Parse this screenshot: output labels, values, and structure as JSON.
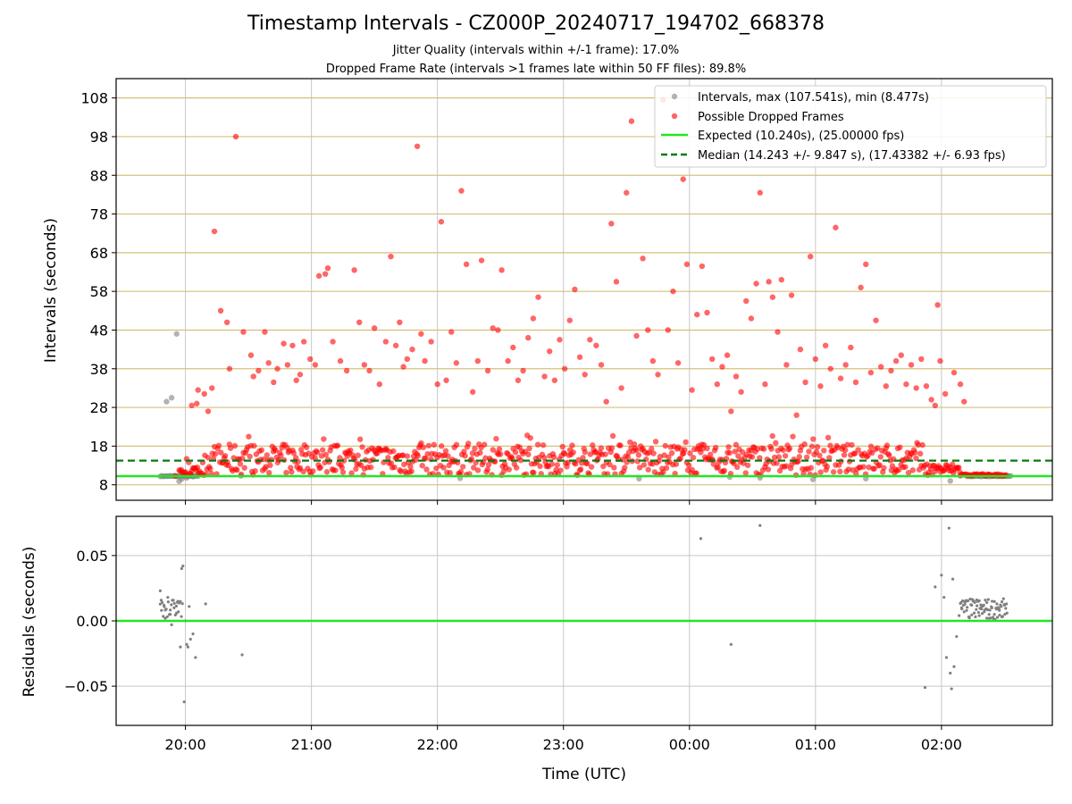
{
  "title": "Timestamp Intervals - CZ000P_20240717_194702_668378",
  "subtitle_1": "Jitter Quality (intervals within +/-1 frame): 17.0%",
  "subtitle_2": "Dropped Frame Rate (intervals >1 frames late within 50 FF files): 89.8%",
  "colors": {
    "intervals": "#808080",
    "dropped": "#ff0000",
    "expected": "#22e622",
    "median": "#0a7a0a",
    "threshold_grid": "#d6c07a",
    "grid": "#c8c8c8"
  },
  "chart_data": [
    {
      "type": "scatter",
      "panel": "top",
      "xlabel": "",
      "ylabel": "Intervals (seconds)",
      "x_unit": "hours since 00:00 UTC (negative = previous day)",
      "xlim": [
        -4.55,
        2.88
      ],
      "ylim": [
        4.0,
        113.0
      ],
      "y_ticks": [
        8,
        18,
        28,
        38,
        48,
        58,
        68,
        78,
        88,
        98,
        108
      ],
      "x_tick_labels": [
        "20:00",
        "21:00",
        "22:00",
        "23:00",
        "00:00",
        "01:00",
        "02:00"
      ],
      "x_tick_values": [
        -4,
        -3,
        -2,
        -1,
        0,
        1,
        2
      ],
      "grid": true,
      "legend_position": "top-right",
      "legend": [
        "Intervals, max (107.541s), min (8.477s)",
        "Possible Dropped Frames",
        "Expected (10.240s), (25.00000 fps)",
        "Median (14.243 +/- 9.847 s), (17.43382 +/- 6.93 fps)"
      ],
      "expected_line": 10.24,
      "median_line": 14.243,
      "series": [
        {
          "name": "Intervals, max (107.541s), min (8.477s)",
          "points": [
            [
              -4.15,
              29.5
            ],
            [
              -4.11,
              30.5
            ],
            [
              -4.07,
              47.0
            ],
            [
              -4.05,
              8.9
            ],
            [
              -4.03,
              9.5
            ],
            [
              -3.99,
              9.8
            ],
            [
              -3.94,
              10.1
            ],
            [
              -3.56,
              10.3
            ],
            [
              -1.82,
              9.7
            ],
            [
              -0.4,
              9.6
            ],
            [
              0.32,
              10.0
            ],
            [
              0.56,
              9.8
            ],
            [
              0.98,
              9.4
            ],
            [
              1.4,
              9.6
            ],
            [
              2.07,
              9.0
            ]
          ]
        },
        {
          "name": "Possible Dropped Frames",
          "points": [
            [
              -4.08,
              10.3
            ],
            [
              -3.95,
              28.5
            ],
            [
              -3.91,
              29.0
            ],
            [
              -3.9,
              32.5
            ],
            [
              -3.85,
              31.5
            ],
            [
              -3.82,
              27.0
            ],
            [
              -3.79,
              33.0
            ],
            [
              -3.77,
              73.5
            ],
            [
              -3.72,
              53.0
            ],
            [
              -3.67,
              50.0
            ],
            [
              -3.65,
              38.0
            ],
            [
              -3.6,
              98.0
            ],
            [
              -3.54,
              47.5
            ],
            [
              -3.48,
              41.5
            ],
            [
              -3.46,
              36.0
            ],
            [
              -3.42,
              37.5
            ],
            [
              -3.37,
              47.5
            ],
            [
              -3.34,
              39.5
            ],
            [
              -3.3,
              34.5
            ],
            [
              -3.27,
              38.0
            ],
            [
              -3.22,
              44.5
            ],
            [
              -3.19,
              39.0
            ],
            [
              -3.15,
              44.0
            ],
            [
              -3.12,
              35.0
            ],
            [
              -3.09,
              36.5
            ],
            [
              -3.06,
              45.0
            ],
            [
              -3.01,
              40.5
            ],
            [
              -2.97,
              39.0
            ],
            [
              -2.94,
              62.0
            ],
            [
              -2.89,
              62.5
            ],
            [
              -2.87,
              64.0
            ],
            [
              -2.83,
              45.0
            ],
            [
              -2.77,
              40.0
            ],
            [
              -2.72,
              37.5
            ],
            [
              -2.66,
              63.5
            ],
            [
              -2.62,
              50.0
            ],
            [
              -2.58,
              39.0
            ],
            [
              -2.54,
              37.5
            ],
            [
              -2.5,
              48.5
            ],
            [
              -2.46,
              34.0
            ],
            [
              -2.41,
              45.0
            ],
            [
              -2.37,
              67.0
            ],
            [
              -2.33,
              44.0
            ],
            [
              -2.3,
              50.0
            ],
            [
              -2.27,
              38.5
            ],
            [
              -2.24,
              40.5
            ],
            [
              -2.2,
              43.0
            ],
            [
              -2.16,
              95.5
            ],
            [
              -2.13,
              47.0
            ],
            [
              -2.1,
              40.0
            ],
            [
              -2.05,
              45.0
            ],
            [
              -2.0,
              34.0
            ],
            [
              -1.97,
              76.0
            ],
            [
              -1.93,
              35.0
            ],
            [
              -1.89,
              47.5
            ],
            [
              -1.85,
              39.5
            ],
            [
              -1.81,
              84.0
            ],
            [
              -1.77,
              65.0
            ],
            [
              -1.72,
              32.0
            ],
            [
              -1.68,
              40.0
            ],
            [
              -1.65,
              66.0
            ],
            [
              -1.6,
              37.5
            ],
            [
              -1.56,
              48.5
            ],
            [
              -1.52,
              48.0
            ],
            [
              -1.49,
              63.5
            ],
            [
              -1.44,
              40.0
            ],
            [
              -1.4,
              43.5
            ],
            [
              -1.36,
              35.0
            ],
            [
              -1.32,
              37.5
            ],
            [
              -1.28,
              46.0
            ],
            [
              -1.24,
              51.0
            ],
            [
              -1.2,
              56.5
            ],
            [
              -1.15,
              36.0
            ],
            [
              -1.11,
              42.5
            ],
            [
              -1.07,
              35.0
            ],
            [
              -1.03,
              45.5
            ],
            [
              -0.99,
              38.0
            ],
            [
              -0.95,
              50.5
            ],
            [
              -0.91,
              58.5
            ],
            [
              -0.87,
              41.0
            ],
            [
              -0.83,
              36.5
            ],
            [
              -0.79,
              45.5
            ],
            [
              -0.74,
              44.0
            ],
            [
              -0.7,
              39.0
            ],
            [
              -0.66,
              29.5
            ],
            [
              -0.62,
              75.5
            ],
            [
              -0.58,
              60.5
            ],
            [
              -0.54,
              33.0
            ],
            [
              -0.5,
              83.5
            ],
            [
              -0.46,
              102.0
            ],
            [
              -0.42,
              46.5
            ],
            [
              -0.37,
              66.5
            ],
            [
              -0.33,
              48.0
            ],
            [
              -0.29,
              40.0
            ],
            [
              -0.25,
              36.5
            ],
            [
              -0.21,
              107.5
            ],
            [
              -0.17,
              48.0
            ],
            [
              -0.13,
              58.0
            ],
            [
              -0.09,
              39.5
            ],
            [
              -0.05,
              87.0
            ],
            [
              -0.02,
              65.0
            ],
            [
              0.02,
              32.5
            ],
            [
              0.06,
              52.0
            ],
            [
              0.1,
              64.5
            ],
            [
              0.14,
              52.5
            ],
            [
              0.18,
              40.5
            ],
            [
              0.22,
              34.0
            ],
            [
              0.26,
              38.5
            ],
            [
              0.3,
              41.5
            ],
            [
              0.33,
              27.0
            ],
            [
              0.37,
              36.0
            ],
            [
              0.41,
              32.0
            ],
            [
              0.45,
              55.5
            ],
            [
              0.49,
              51.0
            ],
            [
              0.53,
              60.0
            ],
            [
              0.56,
              83.5
            ],
            [
              0.6,
              34.0
            ],
            [
              0.63,
              60.5
            ],
            [
              0.66,
              56.5
            ],
            [
              0.7,
              47.5
            ],
            [
              0.73,
              61.0
            ],
            [
              0.77,
              39.0
            ],
            [
              0.81,
              57.0
            ],
            [
              0.85,
              26.0
            ],
            [
              0.88,
              43.0
            ],
            [
              0.92,
              34.5
            ],
            [
              0.96,
              67.0
            ],
            [
              1.0,
              40.5
            ],
            [
              1.04,
              33.5
            ],
            [
              1.08,
              44.0
            ],
            [
              1.12,
              38.0
            ],
            [
              1.16,
              74.5
            ],
            [
              1.2,
              35.5
            ],
            [
              1.24,
              39.0
            ],
            [
              1.28,
              43.5
            ],
            [
              1.32,
              34.5
            ],
            [
              1.36,
              59.0
            ],
            [
              1.4,
              65.0
            ],
            [
              1.44,
              37.0
            ],
            [
              1.48,
              50.5
            ],
            [
              1.52,
              38.5
            ],
            [
              1.56,
              33.5
            ],
            [
              1.6,
              37.5
            ],
            [
              1.64,
              40.0
            ],
            [
              1.68,
              41.5
            ],
            [
              1.72,
              34.0
            ],
            [
              1.76,
              39.0
            ],
            [
              1.8,
              33.0
            ],
            [
              1.84,
              40.5
            ],
            [
              1.88,
              33.5
            ],
            [
              1.92,
              30.0
            ],
            [
              1.95,
              28.5
            ],
            [
              1.97,
              54.5
            ],
            [
              1.99,
              40.0
            ],
            [
              2.03,
              31.5
            ],
            [
              2.1,
              37.0
            ],
            [
              2.15,
              34.0
            ],
            [
              2.18,
              29.5
            ]
          ]
        }
      ]
    },
    {
      "type": "scatter",
      "panel": "bottom",
      "xlabel": "Time (UTC)",
      "ylabel": "Residuals (seconds)",
      "xlim": [
        -4.55,
        2.88
      ],
      "ylim": [
        -0.08,
        0.08
      ],
      "y_tick_labels": [
        "0.05",
        "0.00",
        "−0.05"
      ],
      "y_tick_values": [
        0.05,
        0.0,
        -0.05
      ],
      "x_tick_labels": [
        "20:00",
        "21:00",
        "22:00",
        "23:00",
        "00:00",
        "01:00",
        "02:00"
      ],
      "x_tick_values": [
        -4,
        -3,
        -2,
        -1,
        0,
        1,
        2
      ],
      "grid": true,
      "zero_line": 0.0,
      "series": [
        {
          "name": "",
          "points": [
            [
              -4.2,
              0.023
            ],
            [
              -4.19,
              0.008
            ],
            [
              -4.17,
              0.012
            ],
            [
              -4.16,
              0.002
            ],
            [
              -4.14,
              0.018
            ],
            [
              -4.12,
              0.005
            ],
            [
              -4.11,
              -0.003
            ],
            [
              -4.09,
              0.01
            ],
            [
              -4.07,
              0.006
            ],
            [
              -4.06,
              0.015
            ],
            [
              -4.04,
              -0.02
            ],
            [
              -4.03,
              0.04
            ],
            [
              -4.02,
              0.042
            ],
            [
              -4.01,
              -0.062
            ],
            [
              -4.0,
              0.0
            ],
            [
              -3.99,
              -0.018
            ],
            [
              -3.98,
              -0.02
            ],
            [
              -3.97,
              0.011
            ],
            [
              -3.96,
              -0.014
            ],
            [
              -3.94,
              -0.01
            ],
            [
              -3.92,
              -0.028
            ],
            [
              -3.84,
              0.013
            ],
            [
              -3.55,
              -0.026
            ],
            [
              0.09,
              0.063
            ],
            [
              0.33,
              -0.018
            ],
            [
              0.56,
              0.073
            ],
            [
              1.87,
              -0.051
            ],
            [
              1.95,
              0.026
            ],
            [
              2.0,
              0.035
            ],
            [
              2.02,
              0.018
            ],
            [
              2.04,
              -0.028
            ],
            [
              2.06,
              0.071
            ],
            [
              2.07,
              -0.04
            ],
            [
              2.08,
              -0.052
            ],
            [
              2.09,
              0.032
            ],
            [
              2.1,
              -0.035
            ],
            [
              2.12,
              -0.012
            ],
            [
              2.14,
              0.004
            ],
            [
              2.16,
              0.01
            ],
            [
              2.18,
              0.015
            ],
            [
              2.2,
              0.008
            ],
            [
              2.22,
              0.003
            ],
            [
              2.24,
              0.012
            ],
            [
              2.26,
              0.006
            ],
            [
              2.28,
              0.016
            ],
            [
              2.3,
              0.004
            ],
            [
              2.32,
              0.011
            ],
            [
              2.34,
              0.007
            ],
            [
              2.36,
              0.014
            ],
            [
              2.38,
              0.002
            ],
            [
              2.4,
              0.01
            ],
            [
              2.42,
              0.005
            ],
            [
              2.44,
              0.013
            ],
            [
              2.46,
              0.008
            ],
            [
              2.48,
              0.003
            ],
            [
              2.5,
              0.012
            ],
            [
              2.52,
              0.006
            ]
          ]
        }
      ]
    }
  ]
}
